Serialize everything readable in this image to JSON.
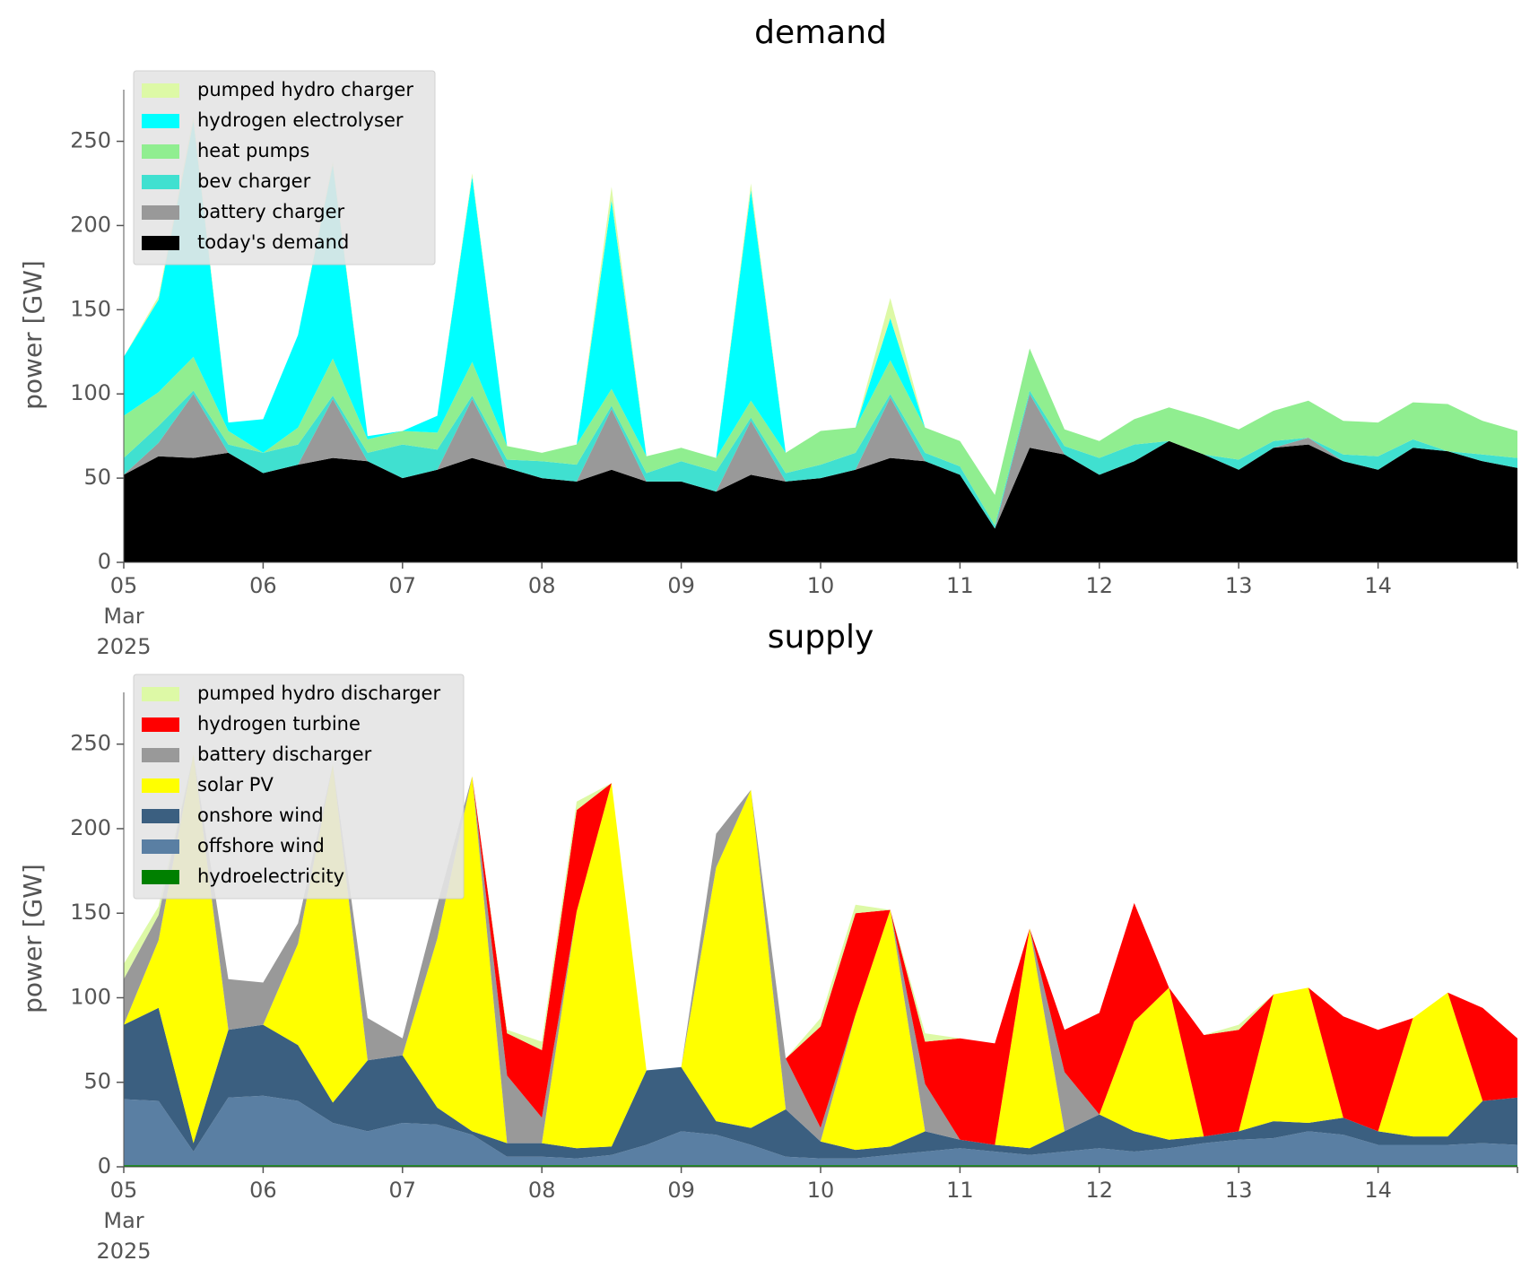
{
  "chart_data": [
    {
      "type": "area",
      "title": "demand",
      "ylabel": "power [GW]",
      "xlabel": "",
      "stacked": true,
      "ylim": [
        0,
        270
      ],
      "yticks": [
        0,
        50,
        100,
        150,
        200,
        250
      ],
      "xlim": [
        "2025-03-05",
        "2025-03-15"
      ],
      "xtick_labels": [
        "05\nMar\n2025",
        "06",
        "07",
        "08",
        "09",
        "10",
        "11",
        "12",
        "13",
        "14"
      ],
      "grid": false,
      "legend_placement": "top-left",
      "x_step_hours": 6,
      "x": [
        "05 00:00",
        "05 06:00",
        "05 12:00",
        "05 18:00",
        "06 00:00",
        "06 06:00",
        "06 12:00",
        "06 18:00",
        "07 00:00",
        "07 06:00",
        "07 12:00",
        "07 18:00",
        "08 00:00",
        "08 06:00",
        "08 12:00",
        "08 18:00",
        "09 00:00",
        "09 06:00",
        "09 12:00",
        "09 18:00",
        "10 00:00",
        "10 06:00",
        "10 12:00",
        "10 18:00",
        "11 00:00",
        "11 06:00",
        "11 12:00",
        "11 18:00",
        "12 00:00",
        "12 06:00",
        "12 12:00",
        "12 18:00",
        "13 00:00",
        "13 06:00",
        "13 12:00",
        "13 18:00",
        "14 00:00",
        "14 06:00",
        "14 12:00",
        "14 18:00",
        "15 00:00"
      ],
      "series": [
        {
          "name": "today's demand",
          "color": "#000000",
          "values": [
            52,
            63,
            62,
            65,
            53,
            58,
            62,
            60,
            50,
            55,
            62,
            56,
            50,
            48,
            55,
            48,
            48,
            42,
            52,
            48,
            50,
            55,
            62,
            60,
            52,
            20,
            68,
            64,
            52,
            60,
            72,
            64,
            55,
            68,
            70,
            60,
            55,
            68,
            66,
            60,
            56
          ]
        },
        {
          "name": "battery charger",
          "color": "#999999",
          "values": [
            0,
            8,
            38,
            0,
            0,
            0,
            35,
            0,
            0,
            0,
            35,
            0,
            0,
            0,
            36,
            0,
            0,
            0,
            32,
            0,
            0,
            0,
            36,
            0,
            0,
            0,
            32,
            0,
            0,
            0,
            0,
            0,
            0,
            0,
            4,
            0,
            0,
            0,
            0,
            0,
            0
          ]
        },
        {
          "name": "bev charger",
          "color": "#40e0d0",
          "values": [
            10,
            10,
            2,
            5,
            12,
            12,
            2,
            5,
            20,
            12,
            2,
            5,
            10,
            10,
            2,
            5,
            12,
            12,
            2,
            5,
            8,
            10,
            2,
            5,
            5,
            2,
            2,
            5,
            10,
            10,
            0,
            0,
            6,
            4,
            0,
            4,
            8,
            5,
            0,
            4,
            6
          ]
        },
        {
          "name": "heat pumps",
          "color": "#90ee90",
          "values": [
            25,
            20,
            20,
            8,
            0,
            10,
            22,
            8,
            8,
            10,
            20,
            8,
            5,
            12,
            10,
            10,
            8,
            8,
            10,
            12,
            20,
            15,
            20,
            15,
            15,
            18,
            25,
            10,
            10,
            15,
            20,
            22,
            18,
            18,
            22,
            20,
            20,
            22,
            28,
            20,
            16
          ]
        },
        {
          "name": "hydrogen electrolyser",
          "color": "#00ffff",
          "values": [
            35,
            55,
            140,
            5,
            20,
            55,
            115,
            2,
            0,
            10,
            110,
            0,
            0,
            0,
            112,
            0,
            0,
            0,
            125,
            0,
            0,
            0,
            25,
            0,
            0,
            0,
            0,
            0,
            0,
            0,
            0,
            0,
            0,
            0,
            0,
            0,
            0,
            0,
            0,
            0,
            0
          ]
        },
        {
          "name": "pumped hydro charger",
          "color": "#ddf9a6",
          "values": [
            0,
            2,
            3,
            0,
            0,
            0,
            2,
            0,
            0,
            0,
            2,
            0,
            0,
            0,
            8,
            0,
            0,
            0,
            4,
            0,
            0,
            0,
            12,
            0,
            0,
            0,
            0,
            0,
            0,
            0,
            0,
            0,
            0,
            0,
            0,
            0,
            0,
            0,
            0,
            0,
            0
          ]
        }
      ]
    },
    {
      "type": "area",
      "title": "supply",
      "ylabel": "power [GW]",
      "xlabel": "",
      "stacked": true,
      "ylim": [
        0,
        270
      ],
      "yticks": [
        0,
        50,
        100,
        150,
        200,
        250
      ],
      "xlim": [
        "2025-03-05",
        "2025-03-15"
      ],
      "xtick_labels": [
        "05\nMar\n2025",
        "06",
        "07",
        "08",
        "09",
        "10",
        "11",
        "12",
        "13",
        "14"
      ],
      "grid": false,
      "legend_placement": "top-left",
      "x_step_hours": 6,
      "x": [
        "05 00:00",
        "05 06:00",
        "05 12:00",
        "05 18:00",
        "06 00:00",
        "06 06:00",
        "06 12:00",
        "06 18:00",
        "07 00:00",
        "07 06:00",
        "07 12:00",
        "07 18:00",
        "08 00:00",
        "08 06:00",
        "08 12:00",
        "08 18:00",
        "09 00:00",
        "09 06:00",
        "09 12:00",
        "09 18:00",
        "10 00:00",
        "10 06:00",
        "10 12:00",
        "10 18:00",
        "11 00:00",
        "11 06:00",
        "11 12:00",
        "11 18:00",
        "12 00:00",
        "12 06:00",
        "12 12:00",
        "12 18:00",
        "13 00:00",
        "13 06:00",
        "13 12:00",
        "13 18:00",
        "14 00:00",
        "14 06:00",
        "14 12:00",
        "14 18:00",
        "15 00:00"
      ],
      "series": [
        {
          "name": "hydroelectricity",
          "color": "#008000",
          "values": [
            1,
            1,
            1,
            1,
            1,
            1,
            1,
            1,
            1,
            1,
            1,
            1,
            1,
            1,
            1,
            1,
            1,
            1,
            1,
            1,
            1,
            1,
            1,
            1,
            1,
            1,
            1,
            1,
            1,
            1,
            1,
            1,
            1,
            1,
            1,
            1,
            1,
            1,
            1,
            1,
            1
          ]
        },
        {
          "name": "offshore wind",
          "color": "#5a7fa3",
          "values": [
            39,
            38,
            8,
            40,
            41,
            38,
            25,
            20,
            25,
            24,
            18,
            5,
            5,
            4,
            6,
            12,
            20,
            18,
            12,
            5,
            4,
            4,
            6,
            8,
            10,
            8,
            6,
            8,
            10,
            8,
            10,
            13,
            15,
            16,
            20,
            18,
            12,
            12,
            12,
            13,
            12
          ]
        },
        {
          "name": "onshore wind",
          "color": "#3b5f80",
          "values": [
            44,
            55,
            5,
            40,
            42,
            33,
            12,
            42,
            40,
            10,
            2,
            8,
            8,
            6,
            5,
            44,
            38,
            8,
            10,
            28,
            10,
            5,
            5,
            12,
            5,
            4,
            4,
            12,
            20,
            12,
            5,
            4,
            5,
            10,
            5,
            10,
            8,
            5,
            5,
            25,
            28
          ]
        },
        {
          "name": "solar PV",
          "color": "#ffff00",
          "values": [
            0,
            40,
            230,
            0,
            0,
            60,
            200,
            0,
            0,
            100,
            210,
            0,
            0,
            140,
            215,
            0,
            0,
            150,
            200,
            0,
            0,
            80,
            140,
            0,
            0,
            0,
            130,
            0,
            0,
            65,
            90,
            0,
            0,
            75,
            80,
            0,
            0,
            70,
            85,
            0,
            0
          ]
        },
        {
          "name": "battery discharger",
          "color": "#999999",
          "values": [
            27,
            15,
            0,
            30,
            25,
            12,
            0,
            25,
            10,
            20,
            0,
            40,
            15,
            0,
            0,
            0,
            0,
            20,
            0,
            30,
            8,
            0,
            0,
            28,
            0,
            0,
            0,
            35,
            0,
            0,
            0,
            0,
            0,
            0,
            0,
            0,
            0,
            0,
            0,
            0,
            0
          ]
        },
        {
          "name": "hydrogen turbine",
          "color": "#ff0000",
          "values": [
            0,
            0,
            0,
            0,
            0,
            0,
            0,
            0,
            0,
            0,
            0,
            25,
            40,
            60,
            0,
            0,
            0,
            0,
            0,
            0,
            60,
            60,
            0,
            25,
            60,
            60,
            0,
            25,
            60,
            70,
            0,
            60,
            60,
            0,
            0,
            60,
            60,
            0,
            0,
            55,
            35
          ]
        },
        {
          "name": "pumped hydro discharger",
          "color": "#ddf9a6",
          "values": [
            9,
            5,
            0,
            0,
            0,
            0,
            0,
            0,
            0,
            0,
            0,
            2,
            5,
            5,
            0,
            0,
            0,
            0,
            0,
            0,
            5,
            5,
            0,
            5,
            0,
            0,
            0,
            0,
            0,
            0,
            0,
            0,
            3,
            0,
            0,
            0,
            0,
            0,
            0,
            0,
            0
          ]
        }
      ]
    }
  ]
}
